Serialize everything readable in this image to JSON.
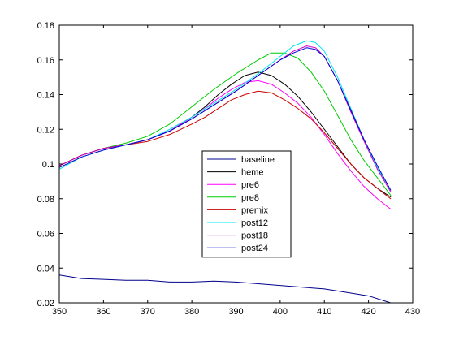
{
  "chart_data": {
    "type": "line",
    "title": "",
    "xlabel": "",
    "ylabel": "",
    "xlim": [
      350,
      430
    ],
    "ylim": [
      0.02,
      0.18
    ],
    "grid": false,
    "legend_position": "center",
    "x_ticks": [
      350,
      360,
      370,
      380,
      390,
      400,
      410,
      420,
      430
    ],
    "y_ticks": [
      0.02,
      0.04,
      0.06,
      0.08,
      0.1,
      0.12,
      0.14,
      0.16,
      0.18
    ],
    "x_tick_labels": [
      "350",
      "360",
      "370",
      "380",
      "390",
      "400",
      "410",
      "420",
      "430"
    ],
    "y_tick_labels": [
      "0.02",
      "0.04",
      "0.06",
      "0.08",
      "0.1",
      "0.12",
      "0.14",
      "0.16",
      "0.18"
    ],
    "series": [
      {
        "name": "baseline",
        "color": "#00008b",
        "x": [
          350,
          355,
          360,
          365,
          370,
          375,
          380,
          385,
          390,
          395,
          400,
          405,
          410,
          415,
          420,
          425
        ],
        "y": [
          0.036,
          0.034,
          0.0335,
          0.033,
          0.033,
          0.032,
          0.032,
          0.0325,
          0.032,
          0.031,
          0.03,
          0.029,
          0.028,
          0.026,
          0.024,
          0.02
        ]
      },
      {
        "name": "heme",
        "color": "#000000",
        "x": [
          350,
          355,
          360,
          365,
          370,
          375,
          380,
          383,
          386,
          389,
          392,
          395,
          398,
          401,
          404,
          407,
          410,
          413,
          416,
          419,
          422,
          425
        ],
        "y": [
          0.099,
          0.105,
          0.109,
          0.111,
          0.114,
          0.119,
          0.127,
          0.133,
          0.14,
          0.146,
          0.151,
          0.153,
          0.151,
          0.146,
          0.139,
          0.13,
          0.12,
          0.11,
          0.1,
          0.092,
          0.086,
          0.081
        ]
      },
      {
        "name": "pre6",
        "color": "#ff00ff",
        "x": [
          350,
          355,
          360,
          365,
          370,
          375,
          380,
          383,
          386,
          389,
          392,
          395,
          398,
          401,
          404,
          407,
          410,
          413,
          416,
          419,
          422,
          425
        ],
        "y": [
          0.099,
          0.105,
          0.109,
          0.111,
          0.114,
          0.119,
          0.127,
          0.132,
          0.138,
          0.143,
          0.147,
          0.148,
          0.146,
          0.141,
          0.135,
          0.127,
          0.117,
          0.106,
          0.096,
          0.087,
          0.08,
          0.074
        ]
      },
      {
        "name": "pre8",
        "color": "#00cc00",
        "x": [
          350,
          355,
          360,
          365,
          370,
          375,
          380,
          385,
          390,
          395,
          398,
          401,
          404,
          407,
          410,
          413,
          416,
          419,
          422,
          425
        ],
        "y": [
          0.099,
          0.105,
          0.109,
          0.112,
          0.116,
          0.123,
          0.133,
          0.143,
          0.152,
          0.16,
          0.164,
          0.164,
          0.161,
          0.153,
          0.142,
          0.128,
          0.114,
          0.102,
          0.092,
          0.082
        ]
      },
      {
        "name": "premix",
        "color": "#cc0000",
        "x": [
          350,
          355,
          360,
          365,
          370,
          375,
          380,
          383,
          386,
          389,
          392,
          395,
          398,
          401,
          404,
          407,
          410,
          413,
          416,
          419,
          422,
          425
        ],
        "y": [
          0.099,
          0.105,
          0.109,
          0.111,
          0.113,
          0.117,
          0.123,
          0.127,
          0.132,
          0.137,
          0.14,
          0.142,
          0.141,
          0.137,
          0.132,
          0.126,
          0.118,
          0.109,
          0.1,
          0.092,
          0.086,
          0.08
        ]
      },
      {
        "name": "post12",
        "color": "#00e5ee",
        "x": [
          350,
          355,
          360,
          365,
          370,
          375,
          380,
          385,
          390,
          395,
          400,
          403,
          406,
          408,
          410,
          413,
          416,
          419,
          422,
          425
        ],
        "y": [
          0.097,
          0.104,
          0.108,
          0.111,
          0.114,
          0.12,
          0.127,
          0.135,
          0.143,
          0.152,
          0.162,
          0.168,
          0.171,
          0.17,
          0.165,
          0.15,
          0.132,
          0.114,
          0.098,
          0.085
        ]
      },
      {
        "name": "post18",
        "color": "#cc00cc",
        "x": [
          350,
          355,
          360,
          365,
          370,
          375,
          380,
          385,
          390,
          395,
          400,
          403,
          406,
          408,
          410,
          413,
          416,
          419,
          422,
          425
        ],
        "y": [
          0.099,
          0.105,
          0.109,
          0.111,
          0.114,
          0.119,
          0.126,
          0.134,
          0.142,
          0.151,
          0.16,
          0.165,
          0.168,
          0.167,
          0.162,
          0.148,
          0.13,
          0.113,
          0.097,
          0.084
        ]
      },
      {
        "name": "post24",
        "color": "#0000cc",
        "x": [
          350,
          355,
          360,
          365,
          370,
          375,
          380,
          385,
          390,
          395,
          400,
          403,
          406,
          408,
          410,
          413,
          416,
          419,
          422,
          425
        ],
        "y": [
          0.098,
          0.104,
          0.108,
          0.111,
          0.114,
          0.119,
          0.126,
          0.134,
          0.142,
          0.151,
          0.16,
          0.164,
          0.167,
          0.166,
          0.162,
          0.148,
          0.131,
          0.114,
          0.099,
          0.085
        ]
      }
    ]
  }
}
